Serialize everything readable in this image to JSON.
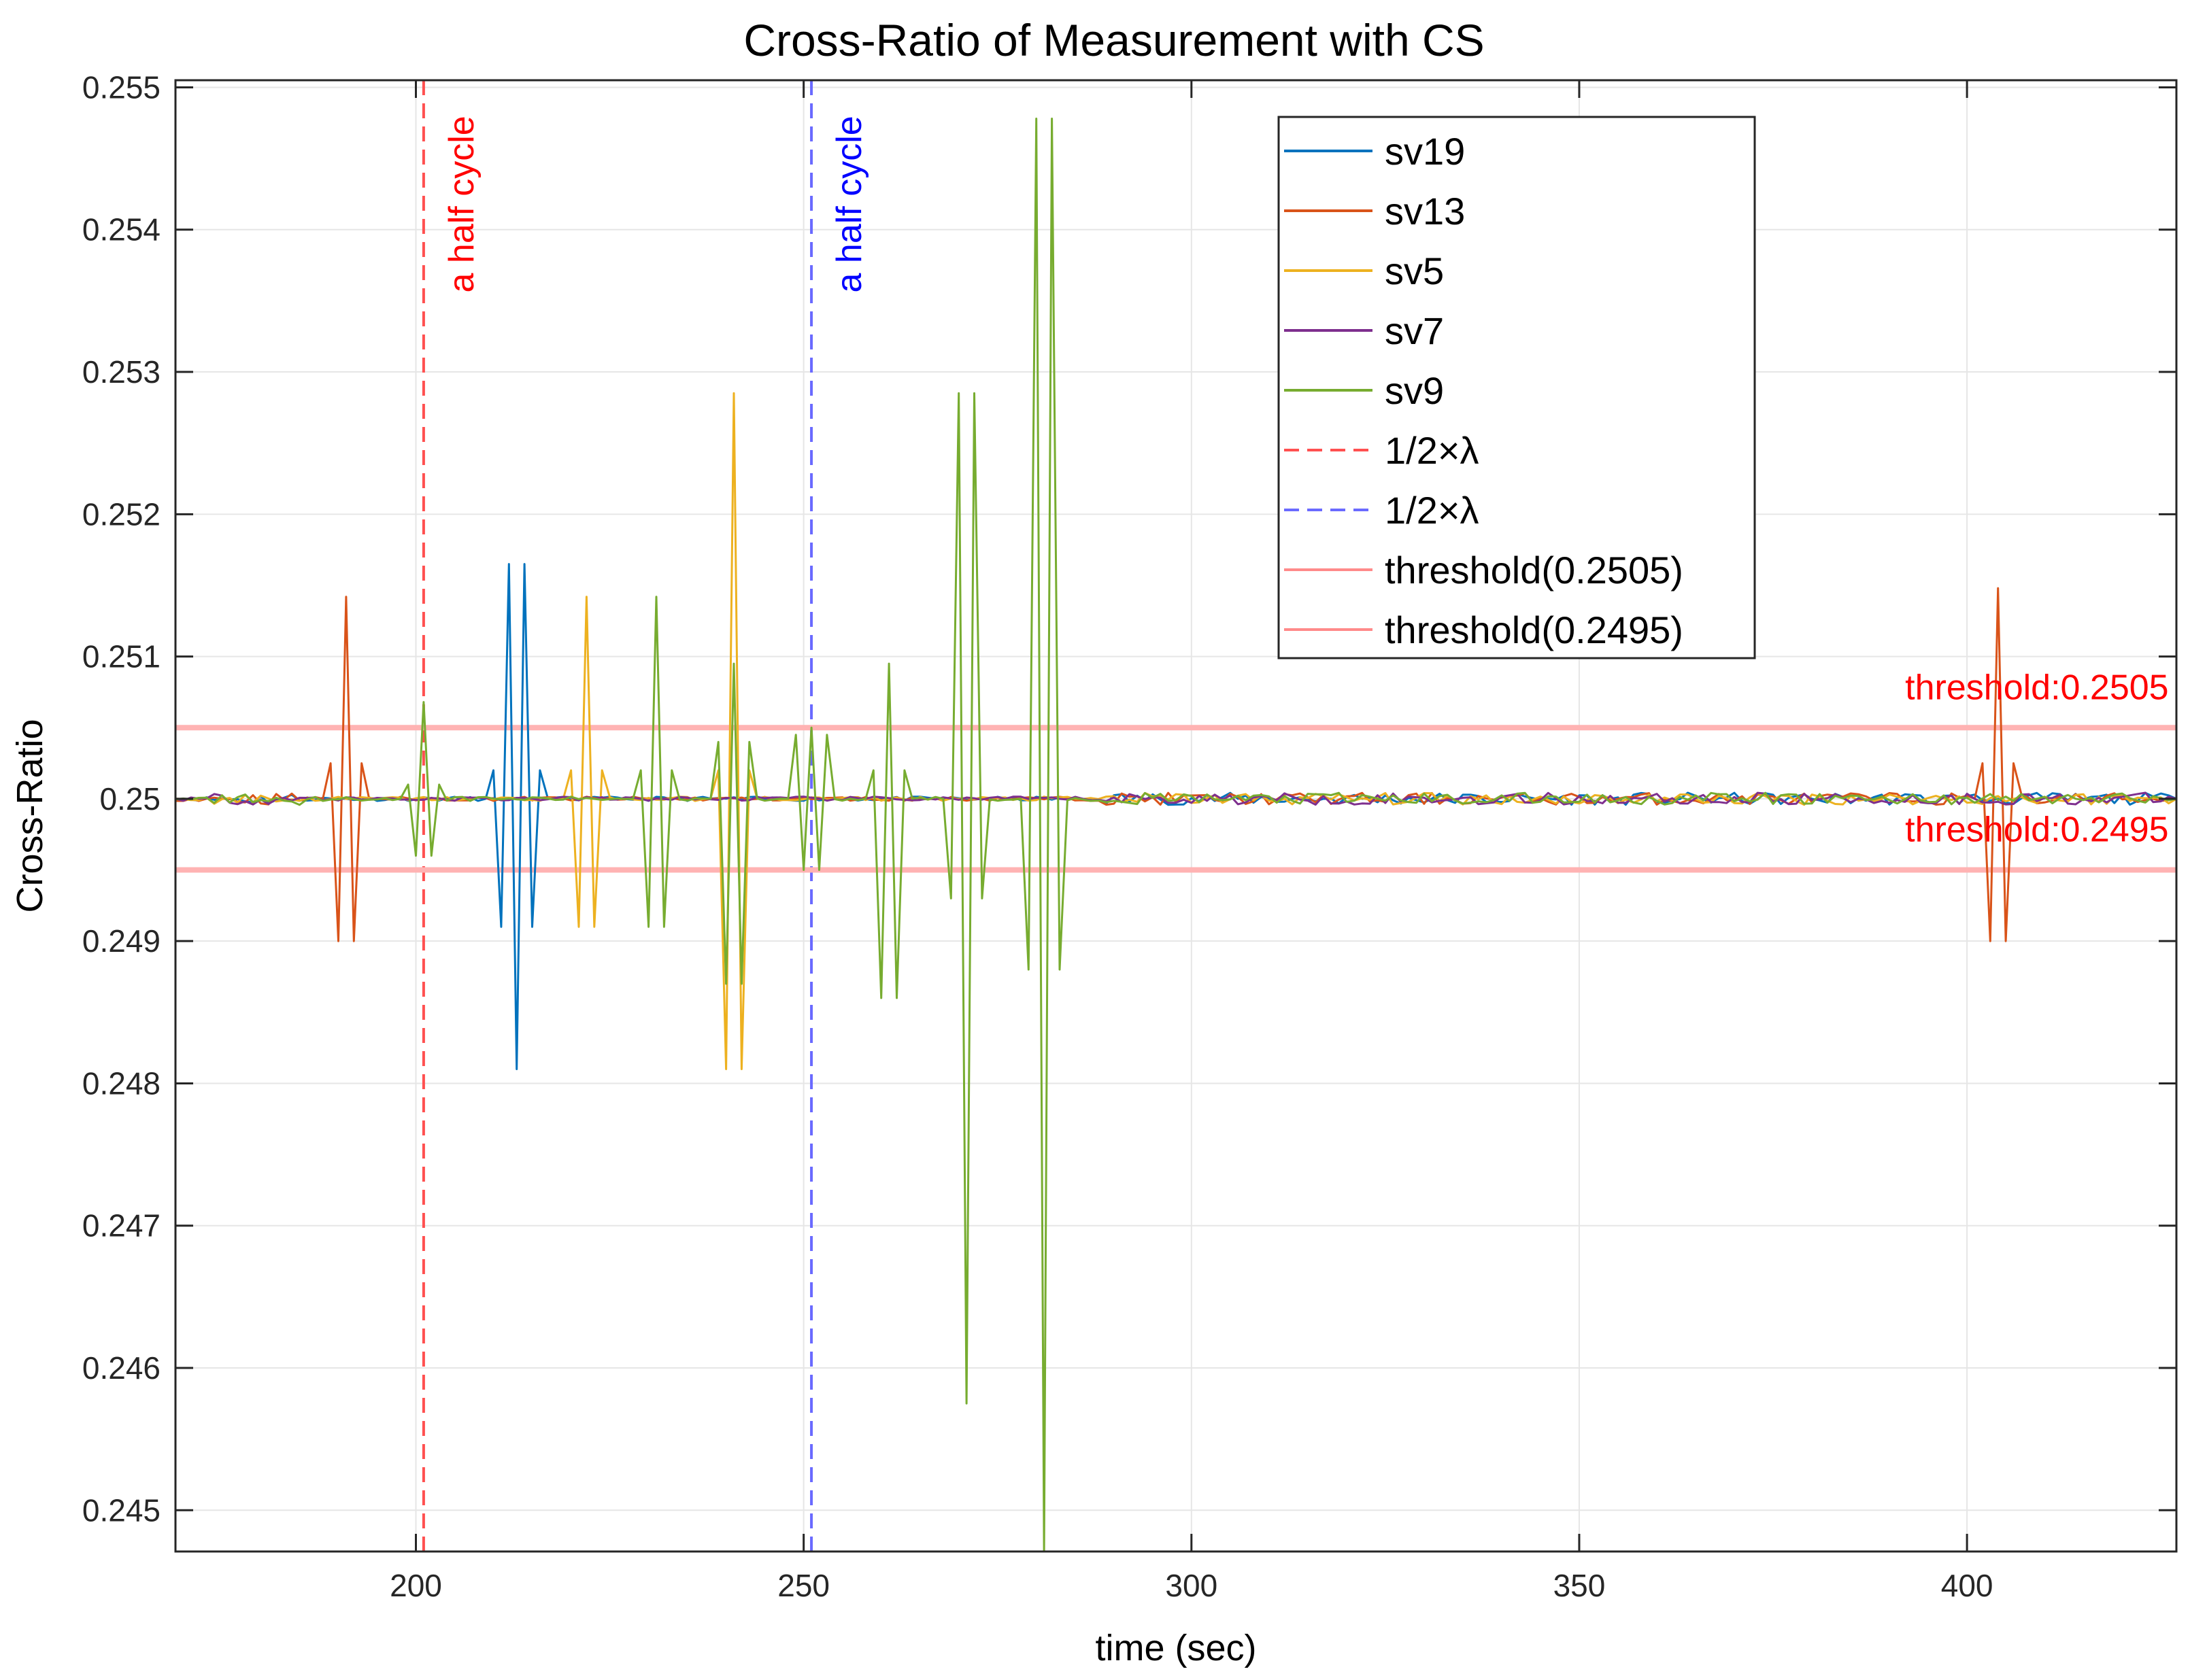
{
  "chart_data": {
    "type": "line",
    "title": "Cross-Ratio of Measurement with CS",
    "xlabel": "time (sec)",
    "ylabel": "Cross-Ratio",
    "xlim": [
      169,
      427
    ],
    "ylim": [
      0.24471,
      0.25505
    ],
    "xticks": [
      200,
      250,
      300,
      350,
      400
    ],
    "xtick_labels": [
      "200",
      "250",
      "300",
      "350",
      "400"
    ],
    "yticks": [
      0.245,
      0.246,
      0.247,
      0.248,
      0.249,
      0.25,
      0.251,
      0.252,
      0.253,
      0.254,
      0.255
    ],
    "ytick_labels": [
      "0.245",
      "0.246",
      "0.247",
      "0.248",
      "0.249",
      "0.25",
      "0.251",
      "0.252",
      "0.253",
      "0.254",
      "0.255"
    ],
    "grid": true,
    "legend_position": "top-right",
    "series": [
      {
        "name": "sv19",
        "color": "#0072BD",
        "style": "solid",
        "points": [
          [
            169,
            0.25
          ],
          [
            209,
            0.25
          ],
          [
            210,
            0.2502
          ],
          [
            211,
            0.2491
          ],
          [
            212,
            0.25165
          ],
          [
            213,
            0.2481
          ],
          [
            214,
            0.25165
          ],
          [
            215,
            0.2491
          ],
          [
            216,
            0.2502
          ],
          [
            217,
            0.25
          ],
          [
            427,
            0.25
          ]
        ]
      },
      {
        "name": "sv13",
        "color": "#D95319",
        "style": "solid",
        "points": [
          [
            169,
            0.25
          ],
          [
            188,
            0.25
          ],
          [
            189,
            0.25025
          ],
          [
            190,
            0.249
          ],
          [
            191,
            0.25142
          ],
          [
            192,
            0.249
          ],
          [
            193,
            0.25025
          ],
          [
            194,
            0.25
          ],
          [
            401,
            0.25
          ],
          [
            402,
            0.25025
          ],
          [
            403,
            0.249
          ],
          [
            404,
            0.25148
          ],
          [
            405,
            0.249
          ],
          [
            406,
            0.25025
          ],
          [
            407,
            0.25
          ],
          [
            427,
            0.25
          ]
        ]
      },
      {
        "name": "sv5",
        "color": "#EDB120",
        "style": "solid",
        "points": [
          [
            169,
            0.25
          ],
          [
            219,
            0.25
          ],
          [
            220,
            0.2502
          ],
          [
            221,
            0.2491
          ],
          [
            222,
            0.25142
          ],
          [
            223,
            0.2491
          ],
          [
            224,
            0.2502
          ],
          [
            225,
            0.25
          ],
          [
            238,
            0.25
          ],
          [
            239,
            0.2502
          ],
          [
            240,
            0.2481
          ],
          [
            241,
            0.25285
          ],
          [
            242,
            0.2481
          ],
          [
            243,
            0.2502
          ],
          [
            244,
            0.25
          ],
          [
            427,
            0.25
          ]
        ]
      },
      {
        "name": "sv7",
        "color": "#7E2F8E",
        "style": "solid",
        "points": [
          [
            169,
            0.25
          ],
          [
            427,
            0.25
          ]
        ]
      },
      {
        "name": "sv9",
        "color": "#77AC30",
        "style": "solid",
        "points": [
          [
            169,
            0.25
          ],
          [
            198,
            0.25
          ],
          [
            199,
            0.2501
          ],
          [
            200,
            0.2496
          ],
          [
            201,
            0.25068
          ],
          [
            202,
            0.2496
          ],
          [
            203,
            0.2501
          ],
          [
            204,
            0.25
          ],
          [
            228,
            0.25
          ],
          [
            229,
            0.2502
          ],
          [
            230,
            0.2491
          ],
          [
            231,
            0.25142
          ],
          [
            232,
            0.2491
          ],
          [
            233,
            0.2502
          ],
          [
            234,
            0.25
          ],
          [
            238,
            0.25
          ],
          [
            239,
            0.2504
          ],
          [
            240,
            0.2487
          ],
          [
            241,
            0.25095
          ],
          [
            242,
            0.2487
          ],
          [
            243,
            0.2504
          ],
          [
            244,
            0.25
          ],
          [
            248,
            0.25
          ],
          [
            249,
            0.25045
          ],
          [
            250,
            0.2495
          ],
          [
            251,
            0.2505
          ],
          [
            252,
            0.2495
          ],
          [
            253,
            0.25045
          ],
          [
            254,
            0.25
          ],
          [
            258,
            0.25
          ],
          [
            259,
            0.2502
          ],
          [
            260,
            0.2486
          ],
          [
            261,
            0.25095
          ],
          [
            262,
            0.2486
          ],
          [
            263,
            0.2502
          ],
          [
            264,
            0.25
          ],
          [
            268,
            0.25
          ],
          [
            269,
            0.2493
          ],
          [
            270,
            0.25285
          ],
          [
            271,
            0.24575
          ],
          [
            272,
            0.25285
          ],
          [
            273,
            0.2493
          ],
          [
            274,
            0.25
          ],
          [
            278,
            0.25
          ],
          [
            279,
            0.2488
          ],
          [
            280,
            0.25478
          ],
          [
            281,
            0.24471
          ],
          [
            282,
            0.25478
          ],
          [
            283,
            0.2488
          ],
          [
            284,
            0.25
          ],
          [
            427,
            0.25
          ]
        ]
      }
    ],
    "reference_lines": [
      {
        "name": "1/2×λ",
        "orientation": "vertical",
        "x": 201,
        "color": "#ff5050",
        "style": "dashed"
      },
      {
        "name": "1/2×λ",
        "orientation": "vertical",
        "x": 251,
        "color": "#6a6aff",
        "style": "dashed"
      },
      {
        "name": "threshold(0.2505)",
        "orientation": "horizontal",
        "y": 0.2505,
        "color": "#ffb3b3",
        "style": "solid"
      },
      {
        "name": "threshold(0.2495)",
        "orientation": "horizontal",
        "y": 0.2495,
        "color": "#ffb3b3",
        "style": "solid"
      }
    ],
    "annotations": [
      {
        "text": "a half cycle",
        "x": 206,
        "y": 0.2539,
        "color": "#ff0000",
        "rotation": -90
      },
      {
        "text": "a half cycle",
        "x": 256,
        "y": 0.2539,
        "color": "#0000ff",
        "rotation": -90
      },
      {
        "text": "threshold:0.2505",
        "x": 426,
        "y": 0.2507,
        "color": "#ff0000"
      },
      {
        "text": "threshold:0.2495",
        "x": 426,
        "y": 0.2497,
        "color": "#ff0000"
      }
    ],
    "legend": [
      {
        "label": "sv19",
        "color": "#0072BD",
        "style": "solid"
      },
      {
        "label": "sv13",
        "color": "#D95319",
        "style": "solid"
      },
      {
        "label": "sv5",
        "color": "#EDB120",
        "style": "solid"
      },
      {
        "label": "sv7",
        "color": "#7E2F8E",
        "style": "solid"
      },
      {
        "label": "sv9",
        "color": "#77AC30",
        "style": "solid"
      },
      {
        "label": "1/2×λ",
        "color": "#ff5050",
        "style": "dashed"
      },
      {
        "label": "1/2×λ",
        "color": "#6a6aff",
        "style": "dashed"
      },
      {
        "label": "threshold(0.2505)",
        "color": "#ff8a8a",
        "style": "solid"
      },
      {
        "label": "threshold(0.2495)",
        "color": "#ff8a8a",
        "style": "solid"
      }
    ]
  }
}
